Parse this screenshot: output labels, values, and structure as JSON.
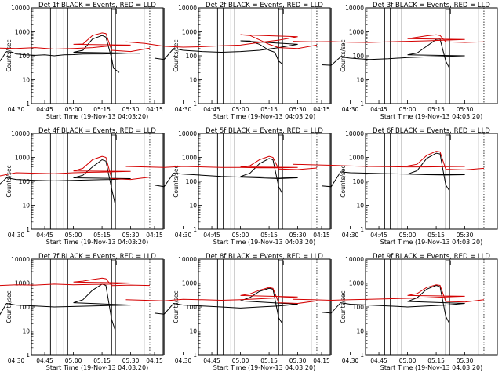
{
  "chart_data": [
    {
      "type": "line",
      "title": "Det 1f BLACK = Events, RED = LLD",
      "xlabel": "Start Time (19-Nov-13 04:03:20)",
      "ylabel": "Counts/sec",
      "xticks": [
        "04:15",
        "04:30",
        "04:45",
        "05:00",
        "05:15",
        "05:30"
      ],
      "yticks": [
        "1",
        "10",
        "100",
        "1000",
        "10000"
      ],
      "ylim": [
        1,
        10000
      ],
      "yscale": "log",
      "series": [
        {
          "color": "#000000",
          "x": [
            4.15,
            4.2,
            4.25,
            4.28,
            4.3,
            4.35,
            4.4,
            4.45,
            4.5,
            4.55,
            4.6,
            4.65,
            4.7,
            4.75,
            4.8,
            4.85,
            4.9,
            4.95,
            5.0,
            5.05,
            5.1,
            5.15,
            5.17,
            5.2,
            5.21,
            5.24
          ],
          "y": [
            45,
            40,
            150,
            140,
            120,
            110,
            105,
            110,
            100,
            110,
            112,
            118,
            120,
            120,
            122,
            125,
            130,
            128,
            140,
            170,
            500,
            700,
            600,
            80,
            30,
            20
          ]
        },
        {
          "color": "#d40000",
          "x": [
            4.0,
            4.1,
            4.2,
            4.3,
            4.4,
            4.5,
            4.6,
            4.7,
            4.8,
            4.9,
            5.0,
            5.05,
            5.1,
            5.15,
            5.17,
            5.2,
            5.3,
            5.4
          ],
          "y": [
            180,
            170,
            210,
            200,
            220,
            190,
            200,
            220,
            260,
            280,
            300,
            310,
            700,
            900,
            850,
            170,
            150,
            210
          ]
        }
      ]
    },
    {
      "type": "line",
      "title": "Det 2f BLACK = Events, RED = LLD",
      "xlabel": "Start Time (19-Nov-13 04:03:20)",
      "ylabel": "Counts/sec",
      "xticks": [
        "04:15",
        "04:30",
        "04:45",
        "05:00",
        "05:15",
        "05:30"
      ],
      "yticks": [
        "1",
        "10",
        "100",
        "1000",
        "10000"
      ],
      "ylim": [
        1,
        10000
      ],
      "yscale": "log",
      "series": [
        {
          "color": "#000000",
          "x": [
            4.15,
            4.2,
            4.25,
            4.3,
            4.4,
            4.5,
            4.6,
            4.7,
            4.8,
            4.9,
            5.0,
            5.05,
            5.1,
            5.15,
            5.18,
            5.2,
            5.22
          ],
          "y": [
            80,
            70,
            200,
            170,
            150,
            140,
            150,
            170,
            220,
            300,
            420,
            410,
            300,
            170,
            140,
            60,
            45
          ]
        },
        {
          "color": "#d40000",
          "x": [
            4.0,
            4.1,
            4.2,
            4.3,
            4.4,
            4.5,
            4.6,
            4.7,
            4.8,
            4.9,
            5.0,
            5.05,
            5.1,
            5.15,
            5.2,
            5.3,
            5.4
          ],
          "y": [
            380,
            330,
            250,
            230,
            240,
            260,
            280,
            360,
            450,
            620,
            750,
            700,
            460,
            300,
            220,
            200,
            280
          ]
        }
      ]
    },
    {
      "type": "line",
      "title": "Det 3f BLACK = Events, RED = LLD",
      "xlabel": "Start Time (19-Nov-13 04:03:20)",
      "ylabel": "Counts/sec",
      "xticks": [
        "04:15",
        "04:30",
        "04:45",
        "05:00",
        "05:15",
        "05:30"
      ],
      "yticks": [
        "1",
        "10",
        "100",
        "1000",
        "10000"
      ],
      "ylim": [
        1,
        10000
      ],
      "yscale": "log",
      "series": [
        {
          "color": "#000000",
          "x": [
            4.15,
            4.2,
            4.25,
            4.3,
            4.4,
            4.5,
            4.6,
            4.7,
            4.8,
            4.9,
            5.0,
            5.05,
            5.1,
            5.15,
            5.17,
            5.2,
            5.22
          ],
          "y": [
            42,
            40,
            90,
            80,
            70,
            75,
            85,
            90,
            95,
            100,
            110,
            130,
            250,
            480,
            500,
            60,
            30
          ]
        },
        {
          "color": "#d40000",
          "x": [
            4.0,
            4.1,
            4.2,
            4.3,
            4.4,
            4.5,
            4.6,
            4.7,
            4.8,
            4.9,
            5.0,
            5.1,
            5.15,
            5.17,
            5.2,
            5.3,
            5.4
          ],
          "y": [
            400,
            380,
            390,
            370,
            360,
            380,
            400,
            420,
            450,
            480,
            520,
            680,
            750,
            700,
            380,
            360,
            380
          ]
        }
      ]
    },
    {
      "type": "line",
      "title": "Det 4f BLACK = Events, RED = LLD",
      "xlabel": "Start Time (19-Nov-13 04:03:20)",
      "ylabel": "Counts/sec",
      "xticks": [
        "04:15",
        "04:30",
        "04:45",
        "05:00",
        "05:15",
        "05:30"
      ],
      "yticks": [
        "1",
        "10",
        "100",
        "1000",
        "10000"
      ],
      "ylim": [
        1,
        10000
      ],
      "yscale": "log",
      "series": [
        {
          "color": "#000000",
          "x": [
            4.15,
            4.2,
            4.25,
            4.3,
            4.4,
            4.5,
            4.6,
            4.7,
            4.8,
            4.9,
            5.0,
            5.05,
            5.1,
            5.15,
            5.17,
            5.2,
            5.22
          ],
          "y": [
            70,
            60,
            140,
            120,
            110,
            105,
            110,
            115,
            120,
            130,
            140,
            180,
            400,
            800,
            700,
            50,
            10
          ]
        },
        {
          "color": "#d40000",
          "x": [
            4.0,
            4.1,
            4.2,
            4.3,
            4.4,
            4.5,
            4.6,
            4.7,
            4.8,
            4.9,
            5.0,
            5.05,
            5.1,
            5.15,
            5.17,
            5.2,
            5.3,
            5.4
          ],
          "y": [
            210,
            180,
            160,
            230,
            220,
            210,
            230,
            240,
            250,
            260,
            270,
            350,
            800,
            1100,
            1000,
            130,
            120,
            150
          ]
        }
      ]
    },
    {
      "type": "line",
      "title": "Det 5f BLACK = Events, RED = LLD",
      "xlabel": "Start Time (19-Nov-13 04:03:20)",
      "ylabel": "Counts/sec",
      "xticks": [
        "04:15",
        "04:30",
        "04:45",
        "05:00",
        "05:15",
        "05:30"
      ],
      "yticks": [
        "1",
        "10",
        "100",
        "1000",
        "10000"
      ],
      "ylim": [
        1,
        10000
      ],
      "yscale": "log",
      "series": [
        {
          "color": "#000000",
          "x": [
            4.15,
            4.2,
            4.25,
            4.3,
            4.4,
            4.5,
            4.6,
            4.7,
            4.8,
            4.9,
            5.0,
            5.05,
            5.1,
            5.15,
            5.17,
            5.2,
            5.22
          ],
          "y": [
            70,
            60,
            220,
            200,
            180,
            160,
            150,
            140,
            130,
            140,
            160,
            220,
            550,
            900,
            800,
            60,
            30
          ]
        },
        {
          "color": "#d40000",
          "x": [
            4.0,
            4.1,
            4.2,
            4.3,
            4.4,
            4.5,
            4.6,
            4.7,
            4.8,
            4.9,
            5.0,
            5.05,
            5.1,
            5.15,
            5.17,
            5.2,
            5.3,
            5.4
          ],
          "y": [
            420,
            400,
            380,
            420,
            400,
            380,
            380,
            370,
            370,
            380,
            400,
            450,
            800,
            1100,
            1000,
            330,
            310,
            360
          ]
        }
      ]
    },
    {
      "type": "line",
      "title": "Det 6f BLACK = Events, RED = LLD",
      "xlabel": "Start Time (19-Nov-13 04:03:20)",
      "ylabel": "Counts/sec",
      "xticks": [
        "04:15",
        "04:30",
        "04:45",
        "05:00",
        "05:15",
        "05:30"
      ],
      "yticks": [
        "1",
        "10",
        "100",
        "1000",
        "10000"
      ],
      "ylim": [
        1,
        10000
      ],
      "yscale": "log",
      "series": [
        {
          "color": "#000000",
          "x": [
            4.15,
            4.2,
            4.25,
            4.3,
            4.4,
            4.5,
            4.6,
            4.7,
            4.8,
            4.9,
            5.0,
            5.05,
            5.1,
            5.15,
            5.17,
            5.2,
            5.22
          ],
          "y": [
            65,
            60,
            250,
            230,
            220,
            210,
            200,
            190,
            185,
            190,
            200,
            280,
            900,
            1500,
            1400,
            70,
            40
          ]
        },
        {
          "color": "#d40000",
          "x": [
            4.0,
            4.1,
            4.2,
            4.3,
            4.4,
            4.5,
            4.6,
            4.7,
            4.8,
            4.9,
            5.0,
            5.05,
            5.1,
            5.15,
            5.17,
            5.2,
            5.3,
            5.4
          ],
          "y": [
            520,
            490,
            470,
            440,
            420,
            410,
            400,
            400,
            410,
            420,
            440,
            520,
            1200,
            1800,
            1700,
            320,
            300,
            350
          ]
        }
      ]
    },
    {
      "type": "line",
      "title": "Det 7f BLACK = Events, RED = LLD",
      "xlabel": "Start Time (19-Nov-13 04:03:20)",
      "ylabel": "Counts/sec",
      "xticks": [
        "04:15",
        "04:30",
        "04:45",
        "05:00",
        "05:15",
        "05:30"
      ],
      "yticks": [
        "1",
        "10",
        "100",
        "1000",
        "10000"
      ],
      "ylim": [
        1,
        10000
      ],
      "yscale": "log",
      "series": [
        {
          "color": "#000000",
          "x": [
            4.15,
            4.2,
            4.25,
            4.3,
            4.4,
            4.5,
            4.6,
            4.7,
            4.8,
            4.9,
            5.0,
            5.05,
            5.1,
            5.15,
            5.17,
            5.2,
            5.22
          ],
          "y": [
            40,
            30,
            140,
            120,
            110,
            100,
            105,
            110,
            115,
            120,
            150,
            200,
            500,
            900,
            800,
            30,
            10
          ]
        },
        {
          "color": "#d40000",
          "x": [
            4.0,
            4.1,
            4.2,
            4.3,
            4.4,
            4.5,
            4.6,
            4.7,
            4.8,
            4.9,
            5.0,
            5.05,
            5.1,
            5.15,
            5.17,
            5.2,
            5.3,
            5.4
          ],
          "y": [
            800,
            820,
            780,
            850,
            820,
            900,
            850,
            880,
            900,
            1000,
            1100,
            1200,
            1400,
            1600,
            1500,
            780,
            820,
            790
          ]
        }
      ]
    },
    {
      "type": "line",
      "title": "Det 8f BLACK = Events, RED = LLD",
      "xlabel": "Start Time (19-Nov-13 04:03:20)",
      "ylabel": "Counts/sec",
      "xticks": [
        "04:15",
        "04:30",
        "04:45",
        "05:00",
        "05:15",
        "05:30"
      ],
      "yticks": [
        "1",
        "10",
        "100",
        "1000",
        "10000"
      ],
      "ylim": [
        1,
        10000
      ],
      "yscale": "log",
      "series": [
        {
          "color": "#000000",
          "x": [
            4.15,
            4.2,
            4.25,
            4.3,
            4.4,
            4.5,
            4.6,
            4.7,
            4.8,
            4.9,
            5.0,
            5.05,
            5.1,
            5.15,
            5.17,
            5.2,
            5.22
          ],
          "y": [
            55,
            50,
            140,
            120,
            110,
            100,
            90,
            100,
            110,
            130,
            180,
            250,
            450,
            600,
            550,
            35,
            20
          ]
        },
        {
          "color": "#d40000",
          "x": [
            4.0,
            4.1,
            4.2,
            4.3,
            4.4,
            4.5,
            4.6,
            4.7,
            4.8,
            4.9,
            5.0,
            5.05,
            5.1,
            5.15,
            5.17,
            5.2,
            5.3,
            5.4
          ],
          "y": [
            200,
            190,
            180,
            210,
            200,
            190,
            200,
            220,
            240,
            260,
            300,
            350,
            500,
            650,
            600,
            150,
            140,
            180
          ]
        }
      ]
    },
    {
      "type": "line",
      "title": "Det 9f BLACK = Events, RED = LLD",
      "xlabel": "Start Time (19-Nov-13 04:03:20)",
      "ylabel": "Counts/sec",
      "xticks": [
        "04:15",
        "04:30",
        "04:45",
        "05:00",
        "05:15",
        "05:30"
      ],
      "yticks": [
        "1",
        "10",
        "100",
        "1000",
        "10000"
      ],
      "ylim": [
        1,
        10000
      ],
      "yscale": "log",
      "series": [
        {
          "color": "#000000",
          "x": [
            4.15,
            4.2,
            4.25,
            4.3,
            4.4,
            4.5,
            4.6,
            4.7,
            4.8,
            4.9,
            5.0,
            5.05,
            5.1,
            5.15,
            5.17,
            5.2,
            5.22
          ],
          "y": [
            60,
            55,
            150,
            130,
            120,
            110,
            100,
            110,
            120,
            140,
            170,
            240,
            550,
            800,
            700,
            40,
            20
          ]
        },
        {
          "color": "#d40000",
          "x": [
            4.0,
            4.1,
            4.2,
            4.3,
            4.4,
            4.5,
            4.6,
            4.7,
            4.8,
            4.9,
            5.0,
            5.05,
            5.1,
            5.15,
            5.17,
            5.2,
            5.3,
            5.4
          ],
          "y": [
            210,
            200,
            190,
            200,
            210,
            220,
            230,
            240,
            260,
            280,
            300,
            360,
            650,
            850,
            800,
            170,
            160,
            200
          ]
        }
      ]
    }
  ]
}
